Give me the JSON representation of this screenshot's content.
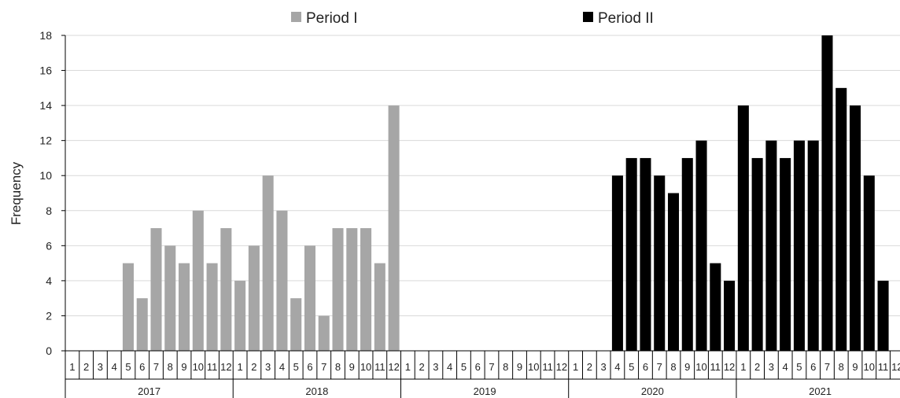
{
  "chart_data": {
    "type": "bar",
    "ylabel": "Frequency",
    "ylim": [
      0,
      18
    ],
    "yticks": [
      0,
      2,
      4,
      6,
      8,
      10,
      12,
      14,
      16,
      18
    ],
    "grid": true,
    "legend_position": "top",
    "month_labels": [
      "1",
      "2",
      "3",
      "4",
      "5",
      "6",
      "7",
      "8",
      "9",
      "10",
      "11",
      "12"
    ],
    "years": [
      "2017",
      "2018",
      "2019",
      "2020",
      "2021"
    ],
    "series": [
      {
        "name": "Period I",
        "color": "#a6a6a6",
        "values": [
          null,
          null,
          null,
          null,
          5,
          3,
          7,
          6,
          5,
          8,
          5,
          7,
          4,
          6,
          10,
          8,
          3,
          6,
          2,
          7,
          7,
          7,
          5,
          14,
          null,
          null,
          null,
          null,
          null,
          null,
          null,
          null,
          null,
          null,
          null,
          null,
          null,
          null,
          null,
          null,
          null,
          null,
          null,
          null,
          null,
          null,
          null,
          null,
          null,
          null,
          null,
          null,
          null,
          null,
          null,
          null,
          null,
          null,
          null,
          null
        ]
      },
      {
        "name": "Period II",
        "color": "#000000",
        "values": [
          null,
          null,
          null,
          null,
          null,
          null,
          null,
          null,
          null,
          null,
          null,
          null,
          null,
          null,
          null,
          null,
          null,
          null,
          null,
          null,
          null,
          null,
          null,
          null,
          null,
          null,
          null,
          null,
          null,
          null,
          null,
          null,
          null,
          null,
          null,
          null,
          null,
          null,
          null,
          10,
          11,
          11,
          10,
          9,
          11,
          12,
          5,
          4,
          14,
          11,
          12,
          11,
          12,
          12,
          18,
          15,
          14,
          10,
          4,
          null
        ]
      }
    ]
  }
}
